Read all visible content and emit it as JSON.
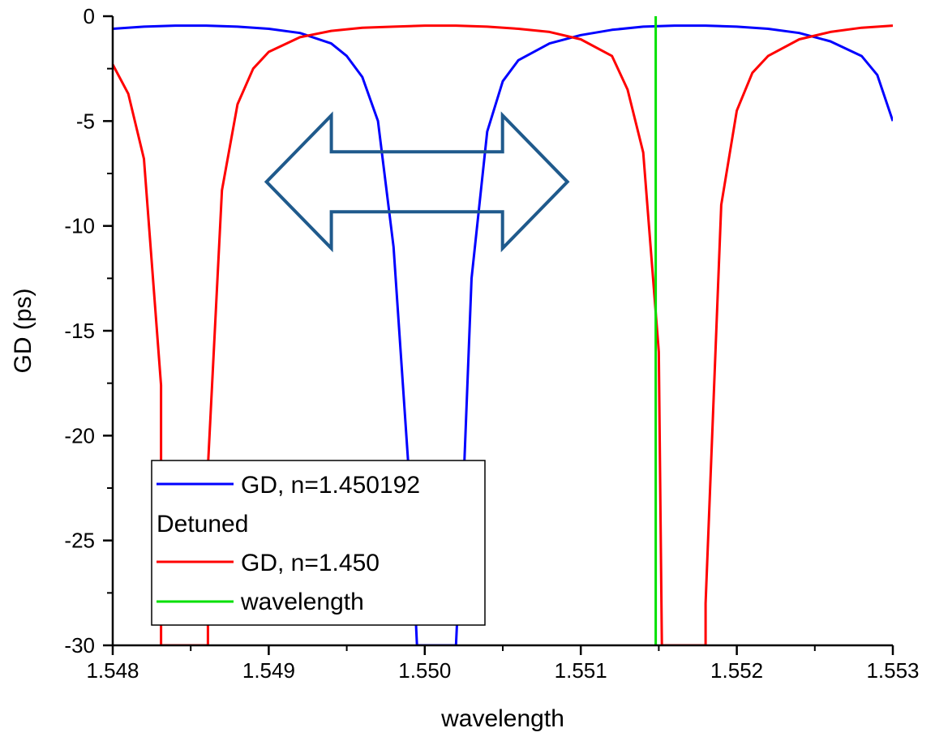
{
  "chart_data": {
    "type": "line",
    "xlabel": "wavelength",
    "ylabel": "GD (ps)",
    "xlim": [
      1.548,
      1.553
    ],
    "ylim": [
      -30,
      0
    ],
    "x_ticks": [
      "1.548",
      "1.549",
      "1.550",
      "1.551",
      "1.552",
      "1.553"
    ],
    "y_ticks": [
      "0",
      "-5",
      "-10",
      "-15",
      "-20",
      "-25",
      "-30"
    ],
    "x_tick_values": [
      1.548,
      1.549,
      1.55,
      1.551,
      1.552,
      1.553
    ],
    "y_tick_values": [
      0,
      -5,
      -10,
      -15,
      -20,
      -25,
      -30
    ],
    "grid": false,
    "legend_position": "bottom-left",
    "legend_heading": "Detuned",
    "series": [
      {
        "name": "GD, n=1.450192",
        "color": "#0000ff",
        "x": [
          1.548,
          1.5482,
          1.5484,
          1.5486,
          1.5488,
          1.549,
          1.5492,
          1.5494,
          1.5495,
          1.5496,
          1.5497,
          1.5498,
          1.5499,
          1.54995,
          1.55,
          1.5502,
          1.55025,
          1.5503,
          1.5504,
          1.5505,
          1.5506,
          1.5508,
          1.551,
          1.5512,
          1.5514,
          1.5516,
          1.5518,
          1.552,
          1.5522,
          1.5524,
          1.5526,
          1.5528,
          1.5529,
          1.553
        ],
        "y": [
          -0.6,
          -0.5,
          -0.45,
          -0.45,
          -0.5,
          -0.6,
          -0.8,
          -1.3,
          -1.9,
          -2.9,
          -5.0,
          -11.0,
          -22.0,
          -30.0,
          -30.0,
          -30.0,
          -22.0,
          -12.5,
          -5.5,
          -3.1,
          -2.1,
          -1.3,
          -0.9,
          -0.65,
          -0.5,
          -0.45,
          -0.45,
          -0.5,
          -0.6,
          -0.8,
          -1.2,
          -1.9,
          -2.8,
          -5.0
        ]
      },
      {
        "name": "GD, n=1.450",
        "color": "#ff0000",
        "x": [
          1.548,
          1.5481,
          1.5482,
          1.54831,
          1.54831,
          1.54861,
          1.54861,
          1.5487,
          1.5488,
          1.5489,
          1.549,
          1.5492,
          1.5494,
          1.5496,
          1.5498,
          1.55,
          1.5502,
          1.5504,
          1.5506,
          1.5508,
          1.551,
          1.5512,
          1.5513,
          1.5514,
          1.5515,
          1.55152,
          1.55152,
          1.5518,
          1.5518,
          1.5519,
          1.552,
          1.5521,
          1.5522,
          1.5524,
          1.5526,
          1.5528,
          1.553
        ],
        "y": [
          -2.3,
          -3.7,
          -6.8,
          -17.6,
          -30.0,
          -30.0,
          -21.5,
          -8.3,
          -4.2,
          -2.5,
          -1.7,
          -1.0,
          -0.7,
          -0.55,
          -0.5,
          -0.45,
          -0.45,
          -0.5,
          -0.6,
          -0.75,
          -1.1,
          -1.9,
          -3.5,
          -6.5,
          -16.0,
          -30.0,
          -30.0,
          -30.0,
          -28.0,
          -9.0,
          -4.5,
          -2.7,
          -1.9,
          -1.1,
          -0.75,
          -0.55,
          -0.45
        ]
      },
      {
        "name": "wavelength",
        "color": "#00e000",
        "x": [
          1.55148,
          1.55148
        ],
        "y": [
          0,
          -30
        ]
      }
    ],
    "annotations": [
      {
        "type": "double-arrow",
        "color": "#1f5a8c",
        "x_range": [
          1.5491,
          1.5508
        ],
        "y_center": -7.9
      }
    ]
  }
}
